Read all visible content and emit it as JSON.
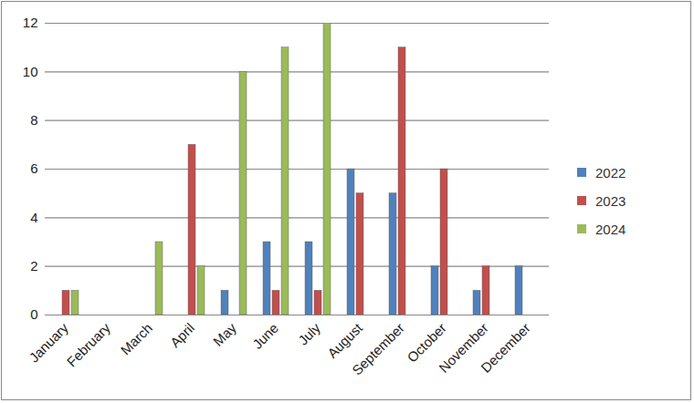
{
  "chart_data": {
    "type": "bar",
    "categories": [
      "January",
      "February",
      "March",
      "April",
      "May",
      "June",
      "July",
      "August",
      "September",
      "October",
      "November",
      "December"
    ],
    "series": [
      {
        "name": "2022",
        "color": "#4f81bd",
        "values": [
          0,
          0,
          0,
          0,
          1,
          3,
          3,
          6,
          5,
          2,
          1,
          2
        ]
      },
      {
        "name": "2023",
        "color": "#c0504d",
        "values": [
          1,
          0,
          0,
          7,
          0,
          1,
          1,
          5,
          11,
          6,
          2,
          0
        ]
      },
      {
        "name": "2024",
        "color": "#9bbb59",
        "values": [
          1,
          0,
          3,
          2,
          10,
          11,
          12,
          null,
          null,
          null,
          null,
          null
        ]
      }
    ],
    "ylim": [
      0,
      12
    ],
    "yticks": [
      0,
      2,
      4,
      6,
      8,
      10,
      12
    ],
    "grid": true,
    "legend": "right"
  }
}
